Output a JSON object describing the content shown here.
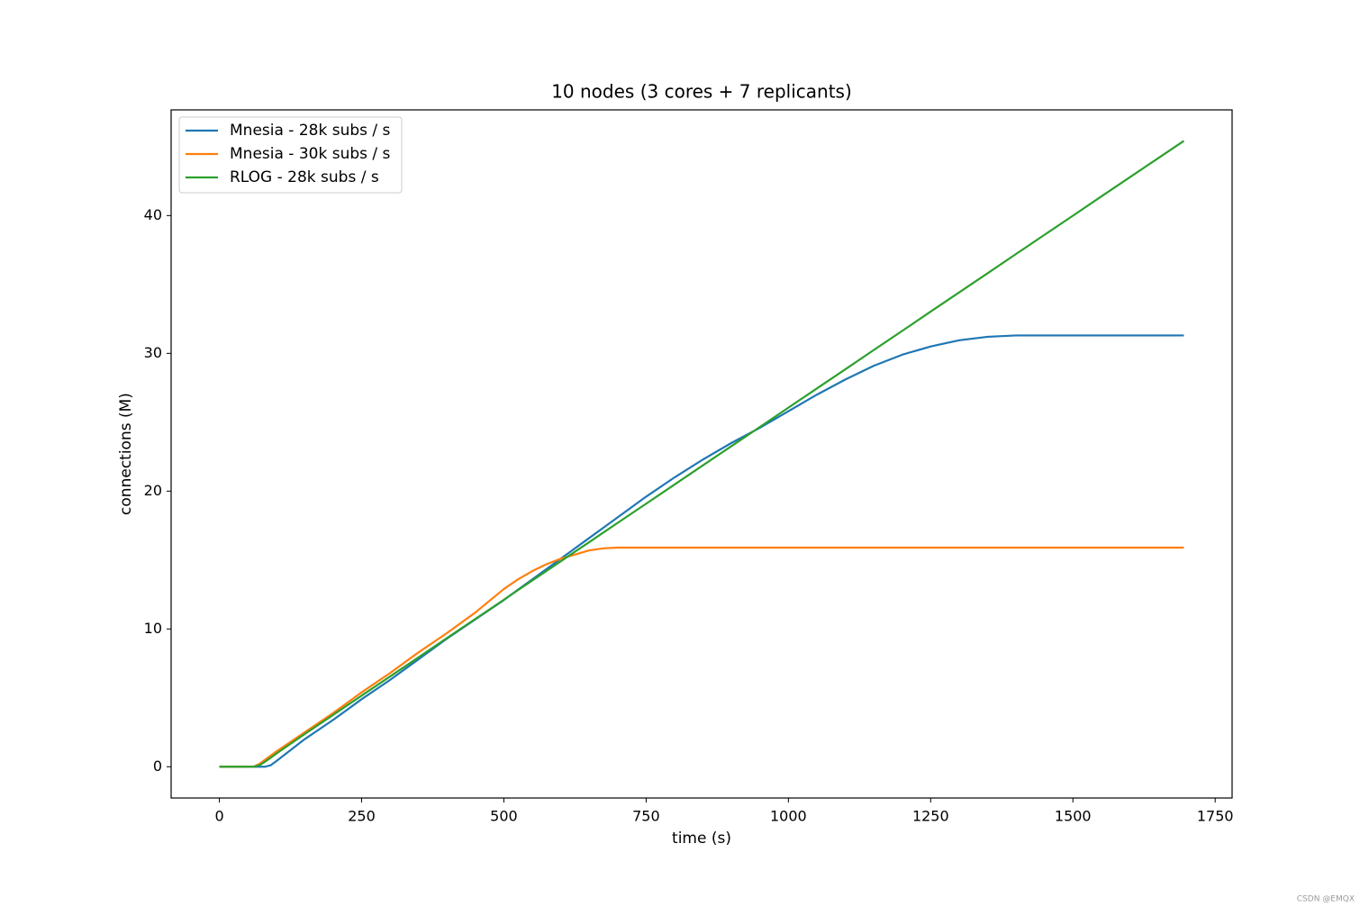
{
  "chart_data": {
    "type": "line",
    "title": "10 nodes (3 cores + 7 replicants)",
    "xlabel": "time (s)",
    "ylabel": "connections (M)",
    "x": [
      0,
      50,
      60,
      70,
      80,
      90,
      100,
      150,
      200,
      250,
      300,
      350,
      400,
      450,
      500,
      525,
      550,
      575,
      600,
      625,
      650,
      675,
      700,
      750,
      800,
      850,
      900,
      950,
      1000,
      1050,
      1100,
      1150,
      1200,
      1250,
      1300,
      1350,
      1400,
      1450,
      1500,
      1550,
      1600,
      1650,
      1695
    ],
    "series": [
      {
        "name": "Mnesia - 28k subs / s",
        "color": "#1f77b4",
        "values": [
          0,
          0,
          0,
          0,
          0,
          0.1,
          0.4,
          2.0,
          3.4,
          4.9,
          6.3,
          7.8,
          9.3,
          10.7,
          12.1,
          12.85,
          13.6,
          14.35,
          15.1,
          15.85,
          16.6,
          17.35,
          18.1,
          19.6,
          21.0,
          22.3,
          23.5,
          24.6,
          25.8,
          27.0,
          28.1,
          29.1,
          29.9,
          30.5,
          30.95,
          31.2,
          31.3,
          31.3,
          31.3,
          31.3,
          31.3,
          31.3,
          31.3
        ]
      },
      {
        "name": "Mnesia - 30k subs / s",
        "color": "#ff7f0e",
        "values": [
          0,
          0,
          0,
          0.2,
          0.5,
          0.8,
          1.1,
          2.5,
          3.9,
          5.4,
          6.8,
          8.3,
          9.7,
          11.2,
          12.9,
          13.6,
          14.2,
          14.7,
          15.1,
          15.4,
          15.7,
          15.85,
          15.9,
          15.9,
          15.9,
          15.9,
          15.9,
          15.9,
          15.9,
          15.9,
          15.9,
          15.9,
          15.9,
          15.9,
          15.9,
          15.9,
          15.9,
          15.9,
          15.9,
          15.9,
          15.9,
          15.9,
          15.9
        ]
      },
      {
        "name": "RLOG - 28k subs / s",
        "color": "#2ca02c",
        "values": [
          0,
          0,
          0,
          0.1,
          0.35,
          0.65,
          0.95,
          2.37,
          3.76,
          5.16,
          6.55,
          7.94,
          9.34,
          10.73,
          12.12,
          12.82,
          13.52,
          14.21,
          14.91,
          15.61,
          16.3,
          17.0,
          17.7,
          19.09,
          20.48,
          21.88,
          23.27,
          24.66,
          26.06,
          27.45,
          28.84,
          30.24,
          31.63,
          33.03,
          34.42,
          35.81,
          37.21,
          38.6,
          39.99,
          41.39,
          42.78,
          44.17,
          45.42
        ]
      }
    ],
    "xlim": [
      -84.75,
      1779.75
    ],
    "xticks": [
      0,
      250,
      500,
      750,
      1000,
      1250,
      1500,
      1750
    ],
    "ylim": [
      -2.27,
      47.67
    ],
    "yticks": [
      0,
      10,
      20,
      30,
      40
    ],
    "legend": "upper left",
    "grid": false
  },
  "watermark": "CSDN @EMQX"
}
